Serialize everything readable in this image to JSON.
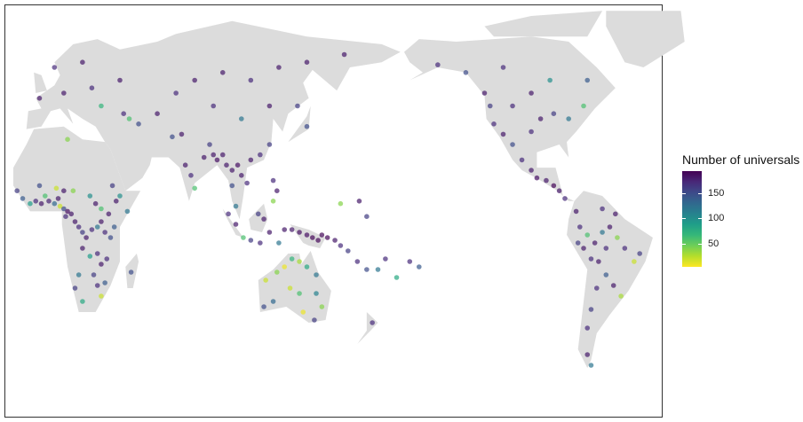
{
  "chart_data": {
    "type": "scatter",
    "projection": "world map, Pacific-centred",
    "land_color": "#dcdcdc",
    "point_alpha": 0.7,
    "legend": {
      "title": "Number of universals",
      "placement": "right",
      "ticks": [
        50,
        100,
        150
      ],
      "tick_labels": [
        "50",
        "100",
        "150"
      ],
      "range": [
        5,
        193
      ],
      "colormap": "viridis"
    },
    "points": [
      [
        -15,
        12,
        160
      ],
      [
        -12,
        9,
        140
      ],
      [
        -8,
        7,
        90
      ],
      [
        -5,
        8,
        170
      ],
      [
        -2,
        7,
        180
      ],
      [
        0,
        10,
        60
      ],
      [
        2,
        8,
        175
      ],
      [
        5,
        7,
        130
      ],
      [
        7,
        9,
        180
      ],
      [
        8,
        6,
        20
      ],
      [
        10,
        5,
        150
      ],
      [
        12,
        4,
        185
      ],
      [
        11,
        2,
        170
      ],
      [
        14,
        3,
        180
      ],
      [
        16,
        0,
        180
      ],
      [
        18,
        -2,
        170
      ],
      [
        20,
        -4,
        160
      ],
      [
        22,
        -6,
        180
      ],
      [
        25,
        -3,
        170
      ],
      [
        28,
        -2,
        120
      ],
      [
        30,
        0,
        180
      ],
      [
        32,
        -4,
        170
      ],
      [
        35,
        -6,
        150
      ],
      [
        37,
        -2,
        140
      ],
      [
        34,
        3,
        180
      ],
      [
        30,
        5,
        60
      ],
      [
        27,
        7,
        180
      ],
      [
        24,
        10,
        100
      ],
      [
        15,
        12,
        40
      ],
      [
        10,
        12,
        180
      ],
      [
        6,
        13,
        20
      ],
      [
        -3,
        14,
        150
      ],
      [
        20,
        -10,
        180
      ],
      [
        24,
        -13,
        90
      ],
      [
        28,
        -12,
        170
      ],
      [
        30,
        -16,
        180
      ],
      [
        33,
        -14,
        170
      ],
      [
        26,
        -20,
        160
      ],
      [
        28,
        -24,
        170
      ],
      [
        30,
        -28,
        20
      ],
      [
        18,
        -20,
        120
      ],
      [
        16,
        -25,
        160
      ],
      [
        20,
        -30,
        80
      ],
      [
        32,
        -23,
        140
      ],
      [
        46,
        -19,
        150
      ],
      [
        40,
        10,
        100
      ],
      [
        38,
        8,
        180
      ],
      [
        44,
        4,
        120
      ],
      [
        36,
        14,
        160
      ],
      [
        12,
        32,
        40
      ],
      [
        -3,
        48,
        180
      ],
      [
        10,
        50,
        180
      ],
      [
        25,
        52,
        170
      ],
      [
        40,
        55,
        180
      ],
      [
        20,
        62,
        180
      ],
      [
        5,
        60,
        170
      ],
      [
        30,
        45,
        70
      ],
      [
        42,
        42,
        170
      ],
      [
        45,
        40,
        60
      ],
      [
        50,
        38,
        150
      ],
      [
        60,
        42,
        180
      ],
      [
        70,
        50,
        170
      ],
      [
        80,
        55,
        180
      ],
      [
        95,
        58,
        180
      ],
      [
        110,
        55,
        170
      ],
      [
        125,
        60,
        180
      ],
      [
        140,
        62,
        180
      ],
      [
        160,
        65,
        180
      ],
      [
        90,
        45,
        170
      ],
      [
        105,
        40,
        120
      ],
      [
        120,
        45,
        180
      ],
      [
        135,
        45,
        160
      ],
      [
        140,
        37,
        150
      ],
      [
        75,
        22,
        180
      ],
      [
        78,
        18,
        170
      ],
      [
        80,
        13,
        60
      ],
      [
        85,
        25,
        180
      ],
      [
        90,
        26,
        180
      ],
      [
        92,
        24,
        185
      ],
      [
        95,
        26,
        180
      ],
      [
        97,
        22,
        180
      ],
      [
        100,
        20,
        180
      ],
      [
        103,
        22,
        185
      ],
      [
        105,
        18,
        180
      ],
      [
        108,
        15,
        170
      ],
      [
        100,
        14,
        150
      ],
      [
        102,
        6,
        120
      ],
      [
        110,
        24,
        180
      ],
      [
        115,
        26,
        170
      ],
      [
        120,
        30,
        160
      ],
      [
        88,
        30,
        160
      ],
      [
        73,
        34,
        180
      ],
      [
        68,
        33,
        150
      ],
      [
        98,
        3,
        170
      ],
      [
        102,
        -1,
        180
      ],
      [
        106,
        -6,
        60
      ],
      [
        110,
        -7,
        160
      ],
      [
        115,
        -8,
        170
      ],
      [
        117,
        1,
        180
      ],
      [
        114,
        3,
        160
      ],
      [
        120,
        -4,
        180
      ],
      [
        122,
        8,
        40
      ],
      [
        124,
        12,
        180
      ],
      [
        122,
        16,
        170
      ],
      [
        125,
        -8,
        120
      ],
      [
        128,
        -3,
        180
      ],
      [
        132,
        -3,
        180
      ],
      [
        136,
        -4,
        185
      ],
      [
        140,
        -5,
        185
      ],
      [
        143,
        -6,
        190
      ],
      [
        146,
        -7,
        190
      ],
      [
        148,
        -5,
        190
      ],
      [
        151,
        -6,
        190
      ],
      [
        155,
        -7,
        180
      ],
      [
        158,
        -9,
        170
      ],
      [
        162,
        -11,
        160
      ],
      [
        167,
        -15,
        170
      ],
      [
        172,
        -18,
        150
      ],
      [
        178,
        -18,
        120
      ],
      [
        182,
        -14,
        170
      ],
      [
        188,
        -21,
        80
      ],
      [
        195,
        -15,
        170
      ],
      [
        200,
        -17,
        140
      ],
      [
        168,
        8,
        180
      ],
      [
        172,
        2,
        160
      ],
      [
        158,
        7,
        40
      ],
      [
        118,
        -22,
        20
      ],
      [
        124,
        -19,
        40
      ],
      [
        128,
        -17,
        10
      ],
      [
        132,
        -14,
        70
      ],
      [
        136,
        -15,
        30
      ],
      [
        140,
        -17,
        80
      ],
      [
        145,
        -20,
        120
      ],
      [
        131,
        -25,
        20
      ],
      [
        136,
        -27,
        60
      ],
      [
        145,
        -27,
        110
      ],
      [
        148,
        -32,
        40
      ],
      [
        122,
        -30,
        130
      ],
      [
        117,
        -32,
        150
      ],
      [
        138,
        -34,
        10
      ],
      [
        144,
        -37,
        160
      ],
      [
        175,
        -38,
        170
      ],
      [
        -150,
        61,
        170
      ],
      [
        -135,
        58,
        150
      ],
      [
        -125,
        50,
        180
      ],
      [
        -122,
        45,
        160
      ],
      [
        -120,
        38,
        170
      ],
      [
        -115,
        34,
        180
      ],
      [
        -110,
        30,
        150
      ],
      [
        -105,
        24,
        170
      ],
      [
        -100,
        20,
        180
      ],
      [
        -97,
        17,
        185
      ],
      [
        -92,
        16,
        180
      ],
      [
        -88,
        14,
        190
      ],
      [
        -85,
        12,
        180
      ],
      [
        -82,
        9,
        170
      ],
      [
        -100,
        35,
        170
      ],
      [
        -95,
        40,
        180
      ],
      [
        -88,
        42,
        160
      ],
      [
        -80,
        40,
        120
      ],
      [
        -72,
        45,
        60
      ],
      [
        -100,
        50,
        180
      ],
      [
        -110,
        45,
        170
      ],
      [
        -90,
        55,
        100
      ],
      [
        -70,
        55,
        140
      ],
      [
        -115,
        60,
        170
      ],
      [
        -76,
        4,
        180
      ],
      [
        -74,
        -2,
        170
      ],
      [
        -70,
        -5,
        60
      ],
      [
        -66,
        -8,
        180
      ],
      [
        -62,
        -4,
        120
      ],
      [
        -58,
        -2,
        180
      ],
      [
        -54,
        -6,
        40
      ],
      [
        -60,
        -10,
        170
      ],
      [
        -64,
        -15,
        180
      ],
      [
        -68,
        -14,
        170
      ],
      [
        -72,
        -10,
        180
      ],
      [
        -75,
        -8,
        160
      ],
      [
        -60,
        -20,
        140
      ],
      [
        -56,
        -24,
        180
      ],
      [
        -50,
        -10,
        170
      ],
      [
        -45,
        -15,
        20
      ],
      [
        -42,
        -12,
        160
      ],
      [
        -52,
        -28,
        30
      ],
      [
        -65,
        -25,
        170
      ],
      [
        -68,
        -33,
        160
      ],
      [
        -70,
        -40,
        170
      ],
      [
        -70,
        -50,
        180
      ],
      [
        -68,
        -54,
        120
      ],
      [
        -62,
        5,
        170
      ],
      [
        -55,
        3,
        180
      ]
    ]
  }
}
